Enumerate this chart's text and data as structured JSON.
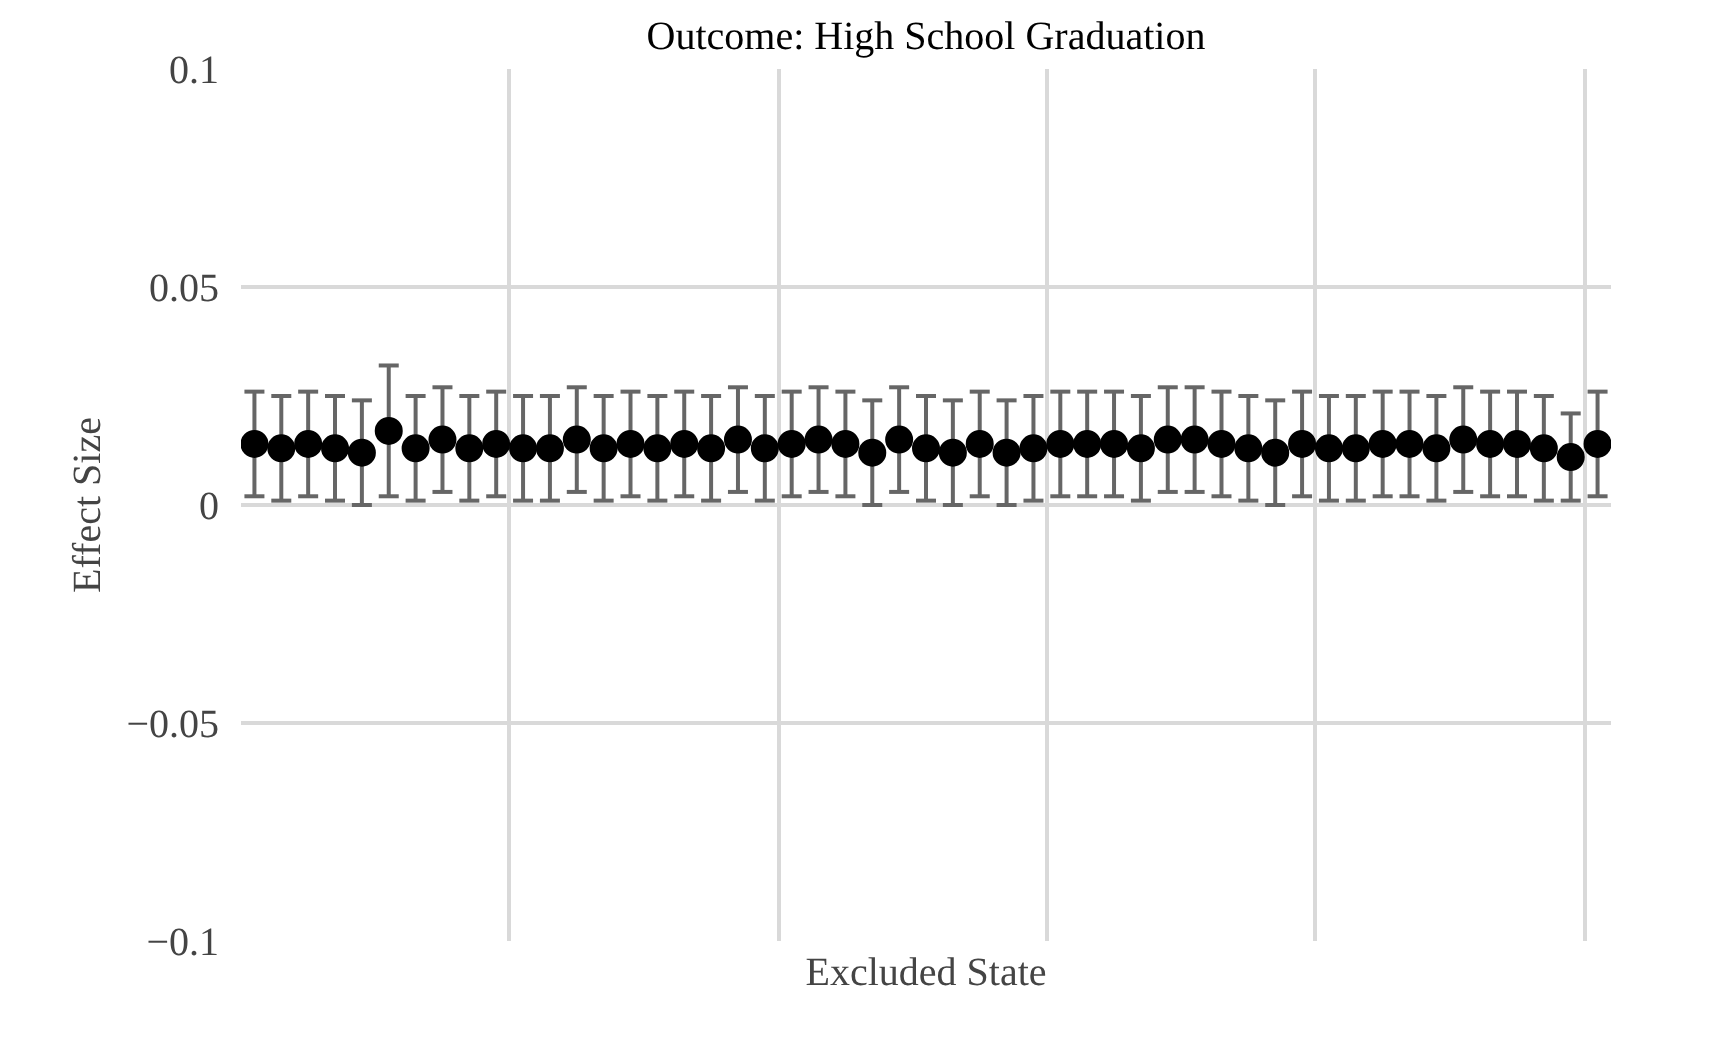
{
  "chart_data": {
    "type": "scatter",
    "title": "Outcome: High School Graduation",
    "xlabel": "Excluded State",
    "ylabel": "Effect Size",
    "categories": [
      null,
      null,
      null,
      null,
      null,
      null,
      null,
      null,
      null,
      null,
      null,
      null,
      null,
      null,
      null,
      null,
      null,
      null,
      null,
      null,
      null,
      null,
      null,
      null,
      null,
      null,
      null,
      null,
      null,
      null,
      null,
      null,
      null,
      null,
      null,
      null,
      null,
      null,
      null,
      null,
      null,
      null,
      null,
      null,
      null,
      null,
      null,
      null,
      null,
      null,
      null
    ],
    "values": [
      0.014,
      0.013,
      0.014,
      0.013,
      0.012,
      0.017,
      0.013,
      0.015,
      0.013,
      0.014,
      0.013,
      0.013,
      0.015,
      0.013,
      0.014,
      0.013,
      0.014,
      0.013,
      0.015,
      0.013,
      0.014,
      0.015,
      0.014,
      0.012,
      0.015,
      0.013,
      0.012,
      0.014,
      0.012,
      0.013,
      0.014,
      0.014,
      0.014,
      0.013,
      0.015,
      0.015,
      0.014,
      0.013,
      0.012,
      0.014,
      0.013,
      0.013,
      0.014,
      0.014,
      0.013,
      0.015,
      0.014,
      0.014,
      0.013,
      0.011,
      0.014
    ],
    "errors": [
      0.012,
      0.012,
      0.012,
      0.012,
      0.012,
      0.015,
      0.012,
      0.012,
      0.012,
      0.012,
      0.012,
      0.012,
      0.012,
      0.012,
      0.012,
      0.012,
      0.012,
      0.012,
      0.012,
      0.012,
      0.012,
      0.012,
      0.012,
      0.012,
      0.012,
      0.012,
      0.012,
      0.012,
      0.012,
      0.012,
      0.012,
      0.012,
      0.012,
      0.012,
      0.012,
      0.012,
      0.012,
      0.012,
      0.012,
      0.012,
      0.012,
      0.012,
      0.012,
      0.012,
      0.012,
      0.012,
      0.012,
      0.012,
      0.012,
      0.01,
      0.012
    ],
    "color": "#000000",
    "marker": "circle",
    "ylim": [
      -0.1,
      0.1
    ],
    "yticks": [
      0.1,
      0.05,
      0,
      -0.05,
      -0.1
    ],
    "grid": true,
    "tick_labels": "y"
  }
}
